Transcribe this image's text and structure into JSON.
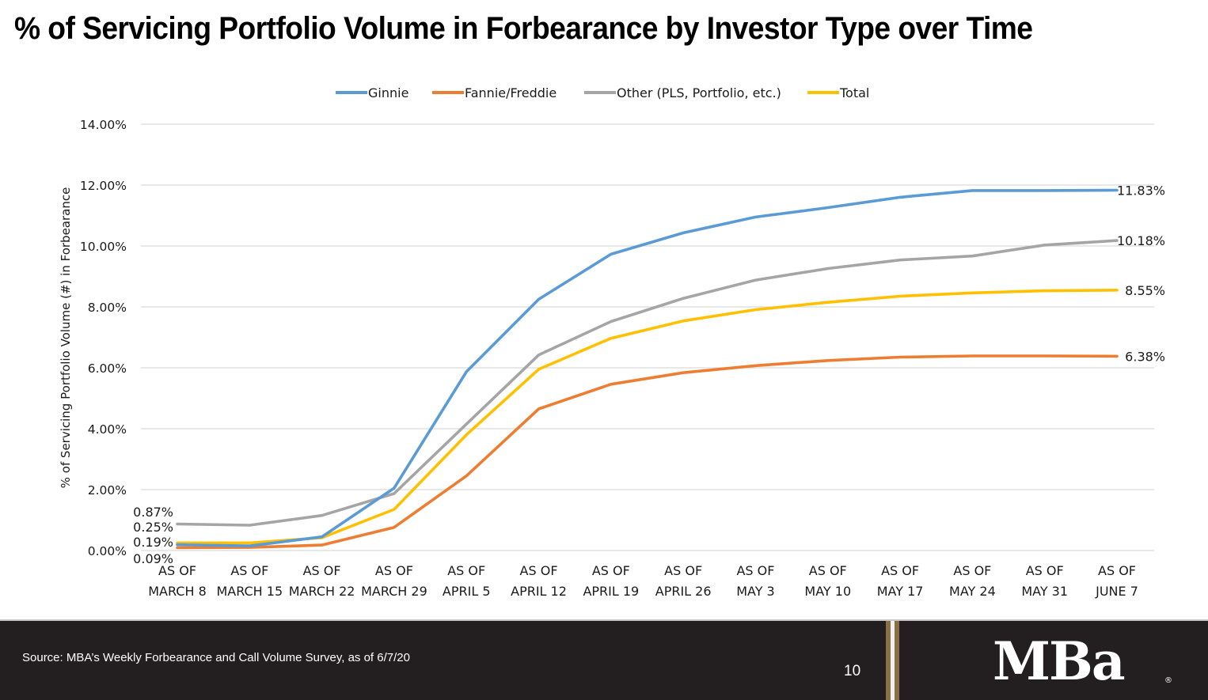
{
  "slide": {
    "title": "% of Servicing Portfolio Volume in Forbearance by Investor Type over Time"
  },
  "chart_data": {
    "type": "line",
    "title": "% of Servicing Portfolio Volume in Forbearance by Investor Type over Time",
    "xlabel": "",
    "ylabel": "% of Servicing Portfolio Volume (#) in Forbearance",
    "ylim": [
      0,
      14
    ],
    "yticks": [
      "0.00%",
      "2.00%",
      "4.00%",
      "6.00%",
      "8.00%",
      "10.00%",
      "12.00%",
      "14.00%"
    ],
    "ytick_values": [
      0,
      2,
      4,
      6,
      8,
      10,
      12,
      14
    ],
    "grid": true,
    "legend_position": "top-center",
    "categories": [
      [
        "AS OF",
        "MARCH 8"
      ],
      [
        "AS OF",
        "MARCH 15"
      ],
      [
        "AS OF",
        "MARCH 22"
      ],
      [
        "AS OF",
        "MARCH 29"
      ],
      [
        "AS OF",
        "APRIL 5"
      ],
      [
        "AS OF",
        "APRIL 12"
      ],
      [
        "AS OF",
        "APRIL 19"
      ],
      [
        "AS OF",
        "APRIL 26"
      ],
      [
        "AS OF",
        "MAY 3"
      ],
      [
        "AS OF",
        "MAY 10"
      ],
      [
        "AS OF",
        "MAY 17"
      ],
      [
        "AS OF",
        "MAY 24"
      ],
      [
        "AS OF",
        "MAY 31"
      ],
      [
        "AS OF",
        "JUNE 7"
      ]
    ],
    "series": [
      {
        "name": "Ginnie",
        "color": "#5b9bd5",
        "values": [
          0.19,
          0.15,
          0.45,
          2.05,
          5.87,
          8.25,
          9.73,
          10.43,
          10.95,
          11.26,
          11.6,
          11.82,
          11.82,
          11.83
        ],
        "start_label": "0.19%",
        "end_label": "11.83%"
      },
      {
        "name": "Fannie/Freddie",
        "color": "#ed7d31",
        "values": [
          0.09,
          0.1,
          0.18,
          0.76,
          2.45,
          4.65,
          5.46,
          5.84,
          6.07,
          6.24,
          6.35,
          6.39,
          6.39,
          6.38
        ],
        "start_label": "0.09%",
        "end_label": "6.38%"
      },
      {
        "name": "Other (PLS, Portfolio, etc.)",
        "color": "#a5a5a5",
        "values": [
          0.87,
          0.83,
          1.15,
          1.87,
          4.15,
          6.42,
          7.52,
          8.28,
          8.88,
          9.26,
          9.54,
          9.67,
          10.03,
          10.18
        ],
        "start_label": "0.87%",
        "end_label": "10.18%"
      },
      {
        "name": "Total",
        "color": "#ffc000",
        "values": [
          0.25,
          0.25,
          0.42,
          1.35,
          3.8,
          5.95,
          6.97,
          7.54,
          7.91,
          8.15,
          8.35,
          8.46,
          8.53,
          8.55
        ],
        "start_label": "0.25%",
        "end_label": "8.55%"
      }
    ],
    "start_labels_order": [
      "0.87%",
      "0.25%",
      "0.19%",
      "0.09%"
    ]
  },
  "footer": {
    "source": "Source: MBA’s Weekly Forbearance and Call Volume Survey, as of 6/7/20",
    "page_number": "10",
    "logo_text": "MBa",
    "logo_registered": "®",
    "background_color": "#231f20",
    "accent_color": "#8b7045"
  }
}
